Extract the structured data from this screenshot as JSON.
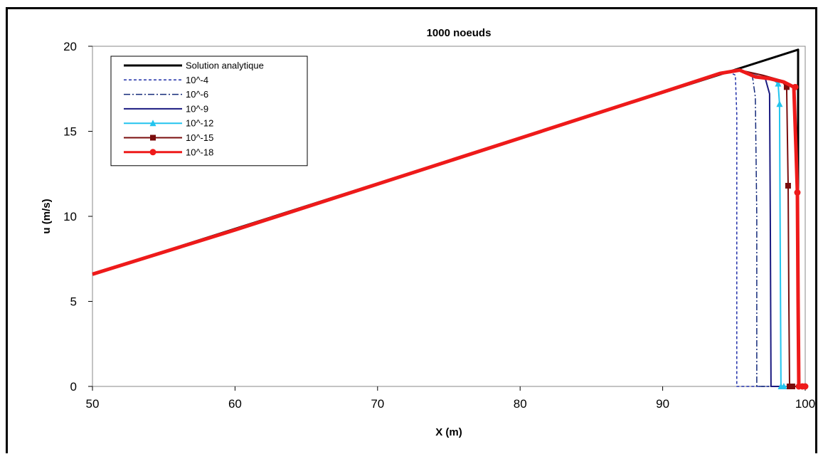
{
  "chart_data": {
    "type": "line",
    "title": "1000 noeuds",
    "xlabel": "X (m)",
    "ylabel": "u (m/s)",
    "xlim": [
      50,
      100
    ],
    "ylim": [
      0,
      20
    ],
    "xticks": [
      50,
      60,
      70,
      80,
      90,
      100
    ],
    "yticks": [
      0,
      5,
      10,
      15,
      20
    ],
    "grid": false,
    "legend_position": "top-left",
    "series": [
      {
        "name": "Solution analytique",
        "color": "#000000",
        "dash": "solid",
        "marker": "none",
        "width": 3,
        "x": [
          50,
          99.5,
          99.5,
          100
        ],
        "y": [
          6.6,
          19.8,
          0,
          0
        ]
      },
      {
        "name": "10^-4",
        "color": "#1f2fa8",
        "dash": "dashed",
        "marker": "none",
        "width": 1.5,
        "x": [
          94.6,
          95.1,
          95.2,
          95.2,
          96,
          98,
          100
        ],
        "y": [
          18.5,
          18.3,
          16,
          0,
          0,
          0,
          0
        ]
      },
      {
        "name": "10^-6",
        "color": "#142a7a",
        "dash": "dashdot",
        "marker": "none",
        "width": 1.5,
        "x": [
          95.4,
          96.0,
          96.3,
          96.5,
          96.6,
          96.6,
          98,
          100
        ],
        "y": [
          18.6,
          18.4,
          18.2,
          17.0,
          10.0,
          0,
          0,
          0
        ]
      },
      {
        "name": "10^-9",
        "color": "#1a1a80",
        "dash": "solid",
        "marker": "none",
        "width": 2,
        "x": [
          95.4,
          96.5,
          97.2,
          97.5,
          97.55,
          97.6,
          98.5,
          100
        ],
        "y": [
          18.6,
          18.3,
          18.1,
          17.2,
          10.0,
          0,
          0,
          0
        ]
      },
      {
        "name": "10^-12",
        "color": "#22c4ee",
        "dash": "solid",
        "marker": "triangle",
        "width": 2,
        "x": [
          95.4,
          96.8,
          97.8,
          98.1,
          98.2,
          98.25,
          98.3,
          99,
          100
        ],
        "y": [
          18.6,
          18.2,
          18.0,
          17.8,
          16.6,
          8.0,
          0,
          0,
          0
        ],
        "marker_x": [
          98.1,
          98.2,
          98.3,
          98.5
        ],
        "marker_y": [
          17.8,
          16.6,
          0,
          0
        ]
      },
      {
        "name": "10^-15",
        "color": "#7a0c0c",
        "dash": "solid",
        "marker": "square",
        "width": 2,
        "x": [
          95.4,
          97.0,
          98.3,
          98.7,
          98.8,
          98.85,
          98.9,
          100
        ],
        "y": [
          18.6,
          18.3,
          18.0,
          17.6,
          11.8,
          5.0,
          0,
          0
        ],
        "marker_x": [
          98.7,
          98.8,
          98.9,
          99.1
        ],
        "marker_y": [
          17.6,
          11.8,
          0,
          0
        ]
      },
      {
        "name": "10^-18",
        "color": "#ee1a1a",
        "dash": "solid",
        "marker": "circle",
        "width": 5,
        "x": [
          50,
          60,
          70,
          80,
          90,
          94,
          95.4,
          96.5,
          97.5,
          98.5,
          99.2,
          99.35,
          99.45,
          99.5,
          99.55,
          100
        ],
        "y": [
          6.6,
          9.2,
          11.9,
          14.6,
          17.3,
          18.4,
          18.6,
          18.2,
          18.1,
          17.9,
          17.6,
          14.0,
          11.4,
          5.0,
          0,
          0
        ],
        "marker_x": [
          99.3,
          99.45,
          99.55,
          99.8,
          100
        ],
        "marker_y": [
          17.6,
          11.4,
          0,
          0,
          0
        ]
      }
    ]
  }
}
